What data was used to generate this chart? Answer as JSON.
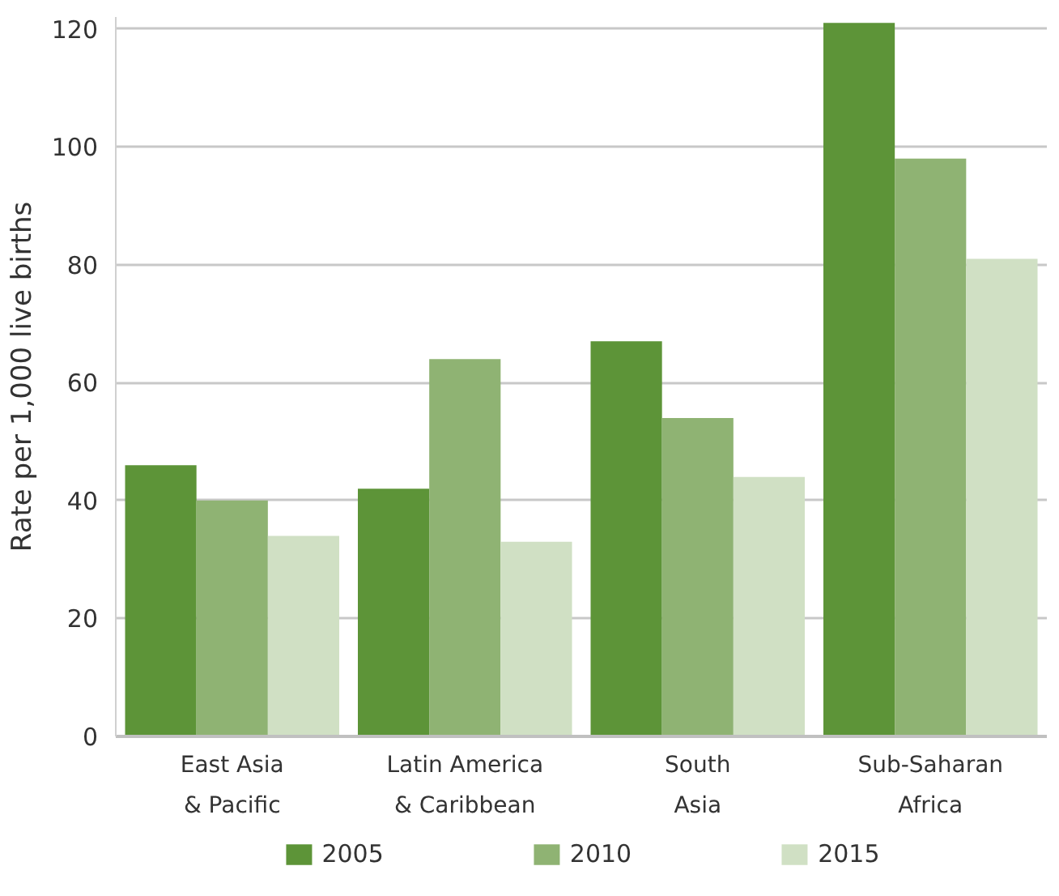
{
  "chart_data": {
    "type": "bar",
    "ylabel": "Rate per 1,000 live births",
    "categories": [
      "East Asia\n& Pacific",
      "Latin America\n& Caribbean",
      "South\nAsia",
      "Sub-Saharan\nAfrica"
    ],
    "series": [
      {
        "name": "2005",
        "color": "#5d9438",
        "values": [
          46,
          42,
          67,
          121
        ]
      },
      {
        "name": "2010",
        "color": "#8fb373",
        "values": [
          40,
          64,
          54,
          98
        ]
      },
      {
        "name": "2015",
        "color": "#d0e0c4",
        "values": [
          34,
          33,
          44,
          81
        ]
      }
    ],
    "ylim": [
      0,
      122
    ],
    "yticks": [
      0,
      20,
      40,
      60,
      80,
      100,
      120
    ],
    "grid": "y",
    "legend": "bottom"
  }
}
